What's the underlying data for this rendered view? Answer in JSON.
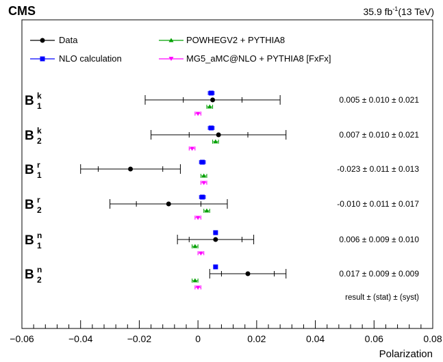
{
  "header": {
    "experiment": "CMS",
    "lumi_value": "35.9 fb",
    "lumi_sup": "-1",
    "lumi_energy": "(13 TeV)"
  },
  "legend": {
    "placement": "top",
    "entries": [
      {
        "label": "Data",
        "color": "#000000",
        "marker": "circle"
      },
      {
        "label": "NLO calculation",
        "color": "#0000ff",
        "marker": "square"
      },
      {
        "label": "POWHEGV2 + PYTHIA8",
        "color": "#00a000",
        "marker": "triangle-up"
      },
      {
        "label": "MG5_aMC@NLO + PYTHIA8 [FxFx]",
        "color": "#ff00ff",
        "marker": "triangle-down"
      }
    ]
  },
  "result_note": "result ± (stat) ± (syst)",
  "chart_data": {
    "type": "scatter",
    "orientation": "horizontal",
    "xlabel": "Polarization",
    "xlim": [
      -0.06,
      0.08
    ],
    "x_ticks": [
      {
        "value": -0.06,
        "label": "−0.06"
      },
      {
        "value": -0.04,
        "label": "−0.04"
      },
      {
        "value": -0.02,
        "label": "−0.02"
      },
      {
        "value": 0,
        "label": "0"
      },
      {
        "value": 0.02,
        "label": "0.02"
      },
      {
        "value": 0.04,
        "label": "0.04"
      },
      {
        "value": 0.06,
        "label": "0.06"
      },
      {
        "value": 0.08,
        "label": "0.08"
      }
    ],
    "grid": false,
    "categories": [
      {
        "base": "B",
        "sup": "k",
        "sub": "1"
      },
      {
        "base": "B",
        "sup": "k",
        "sub": "2"
      },
      {
        "base": "B",
        "sup": "r",
        "sub": "1"
      },
      {
        "base": "B",
        "sup": "r",
        "sub": "2"
      },
      {
        "base": "B",
        "sup": "n",
        "sub": "1"
      },
      {
        "base": "B",
        "sup": "n",
        "sub": "2"
      }
    ],
    "result_labels": [
      "0.005 ± 0.010 ± 0.021",
      "0.007 ± 0.010 ± 0.021",
      "-0.023 ± 0.011 ± 0.013",
      "-0.010 ± 0.011 ± 0.017",
      "0.006 ± 0.009 ± 0.010",
      "0.017 ± 0.009 ± 0.009"
    ],
    "series": [
      {
        "name": "Data",
        "values": [
          0.005,
          0.007,
          -0.023,
          -0.01,
          0.006,
          0.017
        ],
        "stat_err": [
          0.01,
          0.01,
          0.011,
          0.011,
          0.009,
          0.009
        ],
        "total_err": [
          0.023,
          0.023,
          0.017,
          0.02,
          0.013,
          0.013
        ]
      },
      {
        "name": "NLO calculation",
        "values": [
          0.0045,
          0.0045,
          0.0015,
          0.0015,
          0.006,
          0.006
        ],
        "err": [
          0.001,
          0.001,
          0.001,
          0.001,
          0.0005,
          0.0005
        ]
      },
      {
        "name": "POWHEGV2 + PYTHIA8",
        "values": [
          0.004,
          0.006,
          0.002,
          0.003,
          -0.001,
          -0.001
        ],
        "err": [
          0.001,
          0.001,
          0.001,
          0.001,
          0.001,
          0.001
        ]
      },
      {
        "name": "MG5_aMC@NLO + PYTHIA8 [FxFx]",
        "values": [
          0.0,
          -0.002,
          0.002,
          0.0,
          0.001,
          0.0
        ],
        "err": [
          0.001,
          0.001,
          0.001,
          0.001,
          0.001,
          0.001
        ]
      }
    ]
  }
}
